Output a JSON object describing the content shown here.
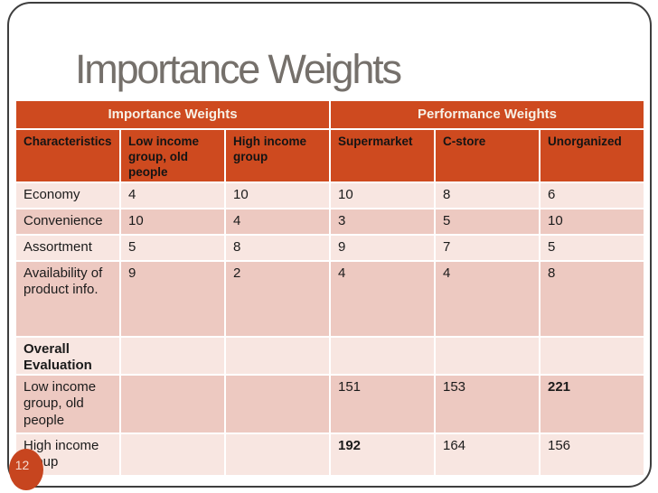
{
  "slide": {
    "title": "Importance Weights",
    "page_number": "12"
  },
  "colors": {
    "accent_orange": "#ce4a1f",
    "row_light_pink": "#f8e6e1",
    "row_dark_pink": "#edc9c1",
    "title_gray": "#75706b",
    "frame_border": "#3e3e3e",
    "badge_orange": "#c7451f",
    "group_header_text": "#f7f1e6"
  },
  "table": {
    "group_headers": [
      {
        "label": "Importance Weights",
        "span": 3
      },
      {
        "label": "Performance Weights",
        "span": 3
      }
    ],
    "columns": [
      "Characteristics",
      "Low income group, old people",
      "High income group",
      "Supermarket",
      "C-store",
      "Unorganized"
    ],
    "rows": [
      {
        "label": "Economy",
        "label_bold": false,
        "shade": "light",
        "values": [
          "4",
          "10",
          "10",
          "8",
          "6"
        ],
        "bold_values": [
          false,
          false,
          false,
          false,
          false
        ]
      },
      {
        "label": "Convenience",
        "label_bold": false,
        "shade": "dark",
        "values": [
          "10",
          "4",
          "3",
          "5",
          "10"
        ],
        "bold_values": [
          false,
          false,
          false,
          false,
          false
        ]
      },
      {
        "label": "Assortment",
        "label_bold": false,
        "shade": "light",
        "values": [
          "5",
          "8",
          "9",
          "7",
          "5"
        ],
        "bold_values": [
          false,
          false,
          false,
          false,
          false
        ]
      },
      {
        "label": "Availability of product info.",
        "label_bold": false,
        "shade": "dark",
        "values": [
          "9",
          "2",
          "4",
          "4",
          "8"
        ],
        "bold_values": [
          false,
          false,
          false,
          false,
          false
        ]
      },
      {
        "label": "Overall Evaluation",
        "label_bold": true,
        "shade": "light",
        "values": [
          "",
          "",
          "",
          "",
          ""
        ],
        "bold_values": [
          false,
          false,
          false,
          false,
          false
        ]
      },
      {
        "label": "Low income group, old people",
        "label_bold": false,
        "shade": "dark",
        "values": [
          "",
          "",
          "151",
          "153",
          "221"
        ],
        "bold_values": [
          false,
          false,
          false,
          false,
          true
        ]
      },
      {
        "label": "High income group",
        "label_bold": false,
        "shade": "light",
        "values": [
          "",
          "",
          "192",
          "164",
          "156"
        ],
        "bold_values": [
          false,
          false,
          true,
          false,
          false
        ]
      }
    ]
  }
}
